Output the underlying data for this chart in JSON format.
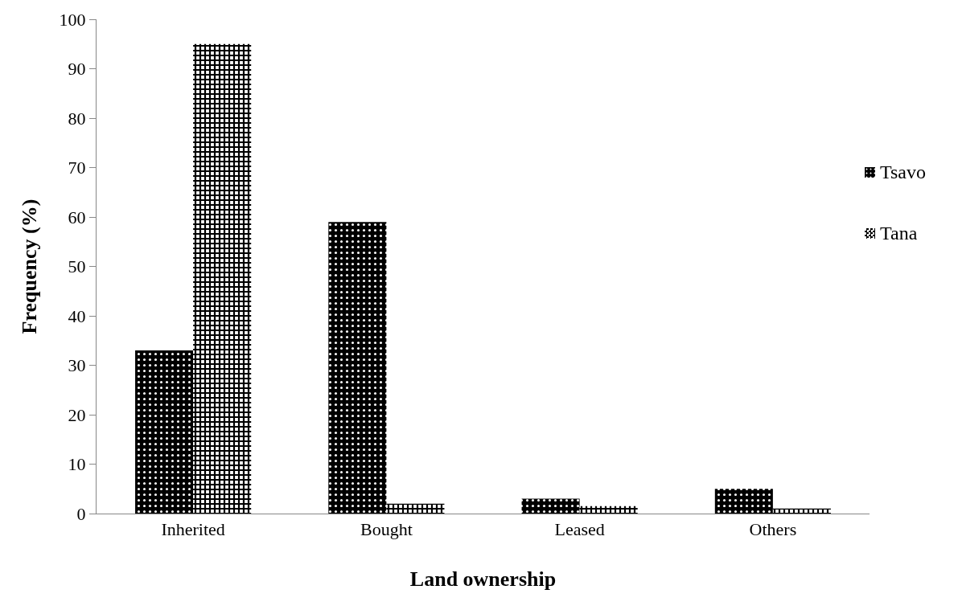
{
  "chart_data": {
    "type": "bar",
    "xlabel": "Land ownership",
    "ylabel": "Frequency (%)",
    "categories": [
      "Inherited",
      "Bought",
      "Leased",
      "Others"
    ],
    "series": [
      {
        "name": "Tsavo",
        "color": "#000000",
        "values": [
          33,
          59,
          3,
          5
        ]
      },
      {
        "name": "Tana",
        "color": "#000000",
        "values": [
          95,
          2,
          1.5,
          1
        ]
      }
    ],
    "ylim": [
      0,
      100
    ],
    "yticks": [
      0,
      10,
      20,
      30,
      40,
      50,
      60,
      70,
      80,
      90,
      100
    ],
    "grid": false,
    "legend": "right"
  }
}
